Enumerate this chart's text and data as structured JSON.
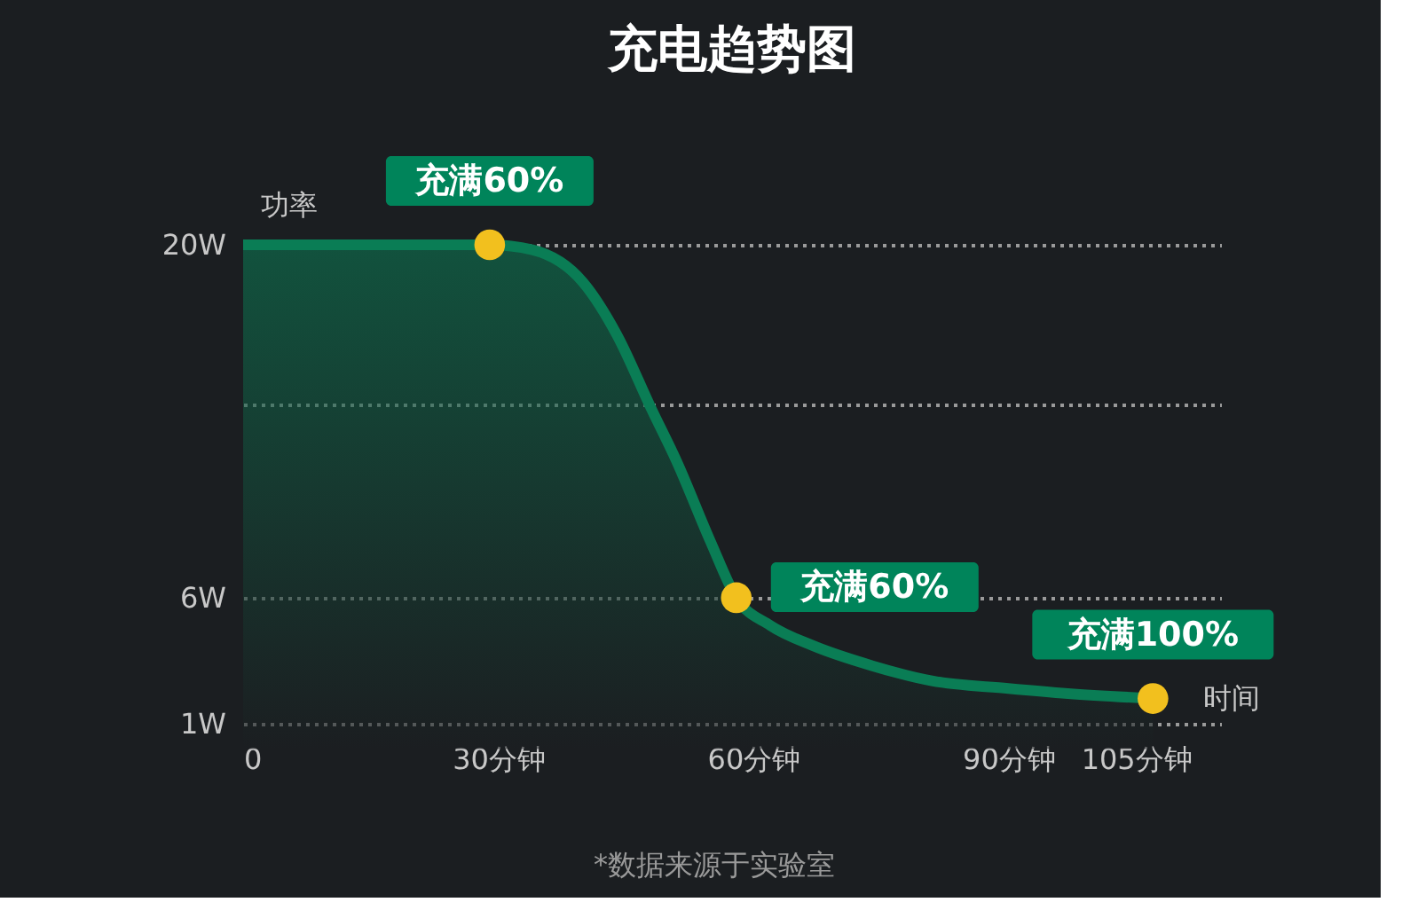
{
  "chart_data": {
    "type": "area",
    "title": "充电趋势图",
    "ylabel": "功率",
    "xlabel": "时间",
    "xlim": [
      0,
      115
    ],
    "ylim": [
      1,
      20
    ],
    "xticks": [
      0,
      {
        "value": 30,
        "label": "30分钟"
      },
      {
        "value": 60,
        "label": "60分钟"
      },
      {
        "value": 90,
        "label": "90分钟"
      },
      {
        "value": 105,
        "label": "105分钟"
      }
    ],
    "yticks": [
      {
        "value": 1,
        "label": "1W"
      },
      {
        "value": 6,
        "label": "6W"
      },
      {
        "value": 13.7,
        "label": null
      },
      {
        "value": 20,
        "label": "20W"
      }
    ],
    "grid": "y",
    "marker": "none",
    "series": [
      {
        "color": "#0a7d55",
        "x": [
          0,
          29,
          34,
          40,
          44,
          48,
          51,
          55,
          58,
          62,
          67,
          74,
          81,
          90,
          97,
          107
        ],
        "values": [
          20,
          20,
          19.8,
          18.5,
          16.4,
          13.5,
          11.4,
          8.2,
          6,
          4.9,
          4.1,
          3.3,
          2.7,
          2.4,
          2.2,
          2.0
        ]
      },
      {
        "type": "scatter",
        "marker": "circle",
        "color": "#f2c01e",
        "x": [
          29,
          58,
          107
        ],
        "values": [
          20,
          6,
          2.0
        ]
      }
    ],
    "annotations": [
      {
        "text": "充满60%",
        "x": 29,
        "y": 20
      },
      {
        "text": "充满60%",
        "x": 58,
        "y": 6
      },
      {
        "text": "充满100%",
        "x": 107,
        "y": 2.0
      },
      "*数据来源于实验室"
    ]
  }
}
